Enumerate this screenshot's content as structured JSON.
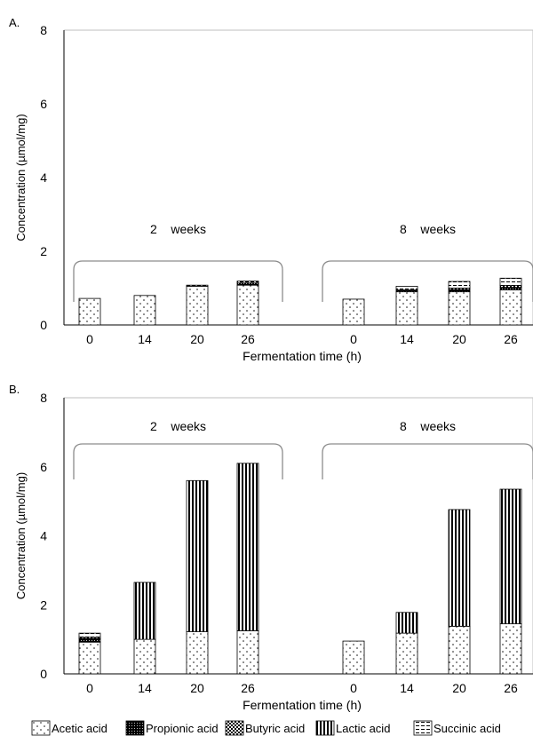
{
  "chart_data": [
    {
      "type": "bar",
      "stacked": true,
      "panel_label": "A.",
      "title": "",
      "xlabel": "Fermentation time (h)",
      "ylabel": "Concentration (µmol/mg)",
      "ylim": [
        0,
        8
      ],
      "yticks": [
        "0",
        "2",
        "4",
        "6",
        "8"
      ],
      "grid": false,
      "groups": [
        {
          "label": "2    weeks",
          "categories": [
            "0",
            "14",
            "20",
            "26"
          ]
        },
        {
          "label": "8    weeks",
          "categories": [
            "0",
            "14",
            "20",
            "26"
          ]
        }
      ],
      "series": [
        {
          "name": "Acetic acid",
          "values": [
            0.72,
            0.8,
            1.05,
            1.08,
            0.7,
            0.9,
            0.9,
            0.95
          ]
        },
        {
          "name": "Propionic acid",
          "values": [
            0,
            0,
            0,
            0.06,
            0,
            0.05,
            0.06,
            0.07
          ]
        },
        {
          "name": "Butyric acid",
          "values": [
            0,
            0,
            0,
            0,
            0,
            0,
            0.04,
            0.05
          ]
        },
        {
          "name": "Lactic acid",
          "values": [
            0,
            0,
            0,
            0,
            0,
            0,
            0,
            0
          ]
        },
        {
          "name": "Succinic acid",
          "values": [
            0,
            0,
            0.03,
            0.05,
            0,
            0.1,
            0.18,
            0.2
          ]
        }
      ]
    },
    {
      "type": "bar",
      "stacked": true,
      "panel_label": "B.",
      "title": "",
      "xlabel": "Fermentation time (h)",
      "ylabel": "Concentration (µmol/mg)",
      "ylim": [
        0,
        8
      ],
      "yticks": [
        "0",
        "2",
        "4",
        "6",
        "8"
      ],
      "grid": false,
      "groups": [
        {
          "label": "2    weeks",
          "categories": [
            "0",
            "14",
            "20",
            "26"
          ]
        },
        {
          "label": "8    weeks",
          "categories": [
            "0",
            "14",
            "20",
            "26"
          ]
        }
      ],
      "series": [
        {
          "name": "Acetic acid",
          "values": [
            0.92,
            1.0,
            1.22,
            1.25,
            0.95,
            1.18,
            1.38,
            1.45
          ]
        },
        {
          "name": "Propionic acid",
          "values": [
            0.1,
            0,
            0,
            0,
            0,
            0,
            0,
            0
          ]
        },
        {
          "name": "Butyric acid",
          "values": [
            0.04,
            0,
            0,
            0,
            0,
            0,
            0,
            0
          ]
        },
        {
          "name": "Lactic acid",
          "values": [
            0,
            1.65,
            4.38,
            4.85,
            0,
            0.6,
            3.38,
            3.9
          ]
        },
        {
          "name": "Succinic acid",
          "values": [
            0.12,
            0,
            0,
            0,
            0,
            0,
            0,
            0
          ]
        }
      ]
    }
  ],
  "legend": {
    "placement": "bottom",
    "items": [
      {
        "label": "Acetic acid",
        "pattern": "dots"
      },
      {
        "label": "Propionic acid",
        "pattern": "dense-dots"
      },
      {
        "label": "Butyric acid",
        "pattern": "checker"
      },
      {
        "label": "Lactic acid",
        "pattern": "vertical-stripes"
      },
      {
        "label": "Succinic acid",
        "pattern": "horizontal-dashes"
      }
    ]
  }
}
